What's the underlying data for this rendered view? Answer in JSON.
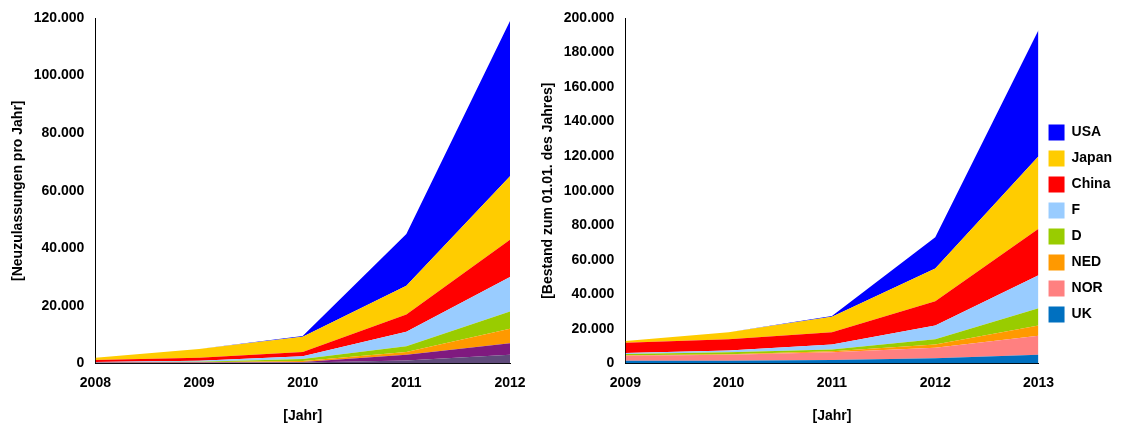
{
  "chart_data": [
    {
      "type": "area",
      "stacked": true,
      "grid": false,
      "x_label": "[Jahr]",
      "y_label": "[Neuzulassungen pro Jahr]",
      "categories": [
        "2008",
        "2009",
        "2010",
        "2011",
        "2012"
      ],
      "ylim": [
        0,
        120000
      ],
      "yticks": [
        {
          "value": 0,
          "label": "0"
        },
        {
          "value": 20000,
          "label": "20.000"
        },
        {
          "value": 40000,
          "label": "40.000"
        },
        {
          "value": 60000,
          "label": "60.000"
        },
        {
          "value": 80000,
          "label": "80.000"
        },
        {
          "value": 100000,
          "label": "100.000"
        },
        {
          "value": 120000,
          "label": "120.000"
        }
      ],
      "series": [
        {
          "name": "UK",
          "color": "#604a7b",
          "values": [
            100,
            100,
            300,
            1000,
            3000
          ]
        },
        {
          "name": "NOR",
          "color": "#7f1a7f",
          "values": [
            200,
            200,
            200,
            2000,
            4000
          ]
        },
        {
          "name": "NED",
          "color": "#ff9900",
          "values": [
            0,
            100,
            300,
            1000,
            5000
          ]
        },
        {
          "name": "D",
          "color": "#99cc00",
          "values": [
            100,
            200,
            700,
            2000,
            6000
          ]
        },
        {
          "name": "F",
          "color": "#99ccff",
          "values": [
            100,
            300,
            1000,
            5000,
            12000
          ]
        },
        {
          "name": "China",
          "color": "#ff0000",
          "values": [
            700,
            1100,
            1500,
            6000,
            13000
          ]
        },
        {
          "name": "Japan",
          "color": "#ffcc00",
          "values": [
            800,
            3000,
            5300,
            10000,
            22000
          ]
        },
        {
          "name": "USA",
          "color": "#0000ff",
          "values": [
            0,
            0,
            200,
            18000,
            54000
          ]
        }
      ]
    },
    {
      "type": "area",
      "stacked": true,
      "grid": false,
      "legend": "right",
      "x_label": "[Jahr]",
      "y_label": "[Bestand zum 01.01. des Jahres]",
      "categories": [
        "2009",
        "2010",
        "2011",
        "2012",
        "2013"
      ],
      "ylim": [
        0,
        200000
      ],
      "yticks": [
        {
          "value": 0,
          "label": "0"
        },
        {
          "value": 20000,
          "label": "20.000"
        },
        {
          "value": 40000,
          "label": "40.000"
        },
        {
          "value": 60000,
          "label": "60.000"
        },
        {
          "value": 80000,
          "label": "80.000"
        },
        {
          "value": 100000,
          "label": "100.000"
        },
        {
          "value": 120000,
          "label": "120.000"
        },
        {
          "value": 140000,
          "label": "140.000"
        },
        {
          "value": 160000,
          "label": "160.000"
        },
        {
          "value": 180000,
          "label": "180.000"
        },
        {
          "value": 200000,
          "label": "200.000"
        }
      ],
      "series": [
        {
          "name": "UK",
          "color": "#0070c0",
          "values": [
            1500,
            1500,
            2000,
            3000,
            5000
          ]
        },
        {
          "name": "NOR",
          "color": "#ff8080",
          "values": [
            3000,
            3500,
            4500,
            6000,
            11000
          ]
        },
        {
          "name": "NED",
          "color": "#ff9900",
          "values": [
            200,
            300,
            500,
            2000,
            6000
          ]
        },
        {
          "name": "D",
          "color": "#99cc00",
          "values": [
            800,
            1200,
            1000,
            3000,
            10000
          ]
        },
        {
          "name": "F",
          "color": "#99ccff",
          "values": [
            500,
            1000,
            3000,
            8000,
            19000
          ]
        },
        {
          "name": "China",
          "color": "#ff0000",
          "values": [
            6000,
            6500,
            7000,
            14000,
            27000
          ]
        },
        {
          "name": "Japan",
          "color": "#ffcc00",
          "values": [
            1000,
            4000,
            9000,
            19000,
            42000
          ]
        },
        {
          "name": "USA",
          "color": "#0000ff",
          "values": [
            0,
            0,
            500,
            18000,
            73000
          ]
        }
      ]
    }
  ]
}
